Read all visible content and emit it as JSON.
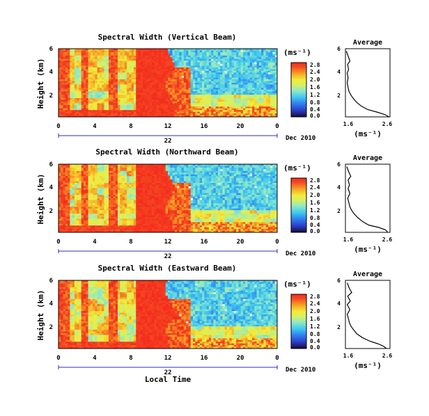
{
  "chart_data": [
    {
      "type": "heatmap",
      "title": "Spectral Width (Vertical Beam)",
      "ylabel": "Height (km)",
      "yticks": [
        "6",
        "4",
        "2"
      ],
      "xticks": [
        "0",
        "4",
        "8",
        "12",
        "16",
        "20",
        "0"
      ],
      "xlim": [
        0,
        24
      ],
      "ylim": [
        0.4,
        6
      ],
      "date_label": "22",
      "month_label": "Dec 2010",
      "colorbar": {
        "unit": "(ms⁻¹)",
        "ticks": [
          "2.8",
          "2.4",
          "2.0",
          "1.6",
          "1.2",
          "0.8",
          "0.4",
          "0.0"
        ],
        "range": [
          0,
          2.8
        ]
      },
      "average_profile": {
        "title": "Average",
        "xlabel": "(ms⁻¹)",
        "xticks": [
          "1.6",
          "2.6"
        ],
        "yticks": [
          "6",
          "4",
          "2"
        ],
        "xlim": [
          1.6,
          2.6
        ],
        "height_km": [
          0.4,
          0.6,
          0.8,
          1.0,
          1.3,
          1.6,
          1.9,
          2.2,
          2.5,
          2.8,
          3.2,
          3.6,
          4.0,
          4.3,
          4.7,
          5.0,
          5.4,
          5.8
        ],
        "width_ms": [
          2.58,
          2.48,
          2.3,
          2.1,
          1.95,
          1.85,
          1.78,
          1.72,
          1.68,
          1.66,
          1.64,
          1.66,
          1.64,
          1.67,
          1.65,
          1.7,
          1.66,
          1.62
        ]
      }
    },
    {
      "type": "heatmap",
      "title": "Spectral Width (Northward Beam)",
      "ylabel": "Height (km)",
      "yticks": [
        "6",
        "4",
        "2"
      ],
      "xticks": [
        "0",
        "4",
        "8",
        "12",
        "16",
        "20",
        "0"
      ],
      "xlim": [
        0,
        24
      ],
      "ylim": [
        0.4,
        6
      ],
      "date_label": "22",
      "month_label": "Dec 2010",
      "colorbar": {
        "unit": "(ms⁻¹)",
        "ticks": [
          "2.8",
          "2.4",
          "2.0",
          "1.6",
          "1.2",
          "0.8",
          "0.4",
          "0.0"
        ],
        "range": [
          0,
          2.8
        ]
      },
      "average_profile": {
        "title": "Average",
        "xlabel": "(ms⁻¹)",
        "xticks": [
          "1.6",
          "2.6"
        ],
        "yticks": [
          "6",
          "4",
          "2"
        ],
        "xlim": [
          1.6,
          2.6
        ],
        "height_km": [
          0.4,
          0.6,
          0.8,
          1.0,
          1.3,
          1.6,
          1.9,
          2.2,
          2.5,
          2.8,
          3.2,
          3.6,
          4.0,
          4.3,
          4.7,
          5.0,
          5.4,
          5.8
        ],
        "width_ms": [
          2.55,
          2.5,
          2.35,
          2.12,
          1.98,
          1.88,
          1.8,
          1.74,
          1.7,
          1.68,
          1.65,
          1.7,
          1.66,
          1.69,
          1.66,
          1.72,
          1.67,
          1.63
        ]
      }
    },
    {
      "type": "heatmap",
      "title": "Spectral Width (Eastward Beam)",
      "ylabel": "Height (km)",
      "yticks": [
        "6",
        "4",
        "2"
      ],
      "xticks": [
        "0",
        "4",
        "8",
        "12",
        "16",
        "20",
        "0"
      ],
      "xlim": [
        0,
        24
      ],
      "ylim": [
        0.4,
        6
      ],
      "date_label": "22",
      "month_label": "Dec 2010",
      "xlabel": "Local Time",
      "colorbar": {
        "unit": "(ms⁻¹)",
        "ticks": [
          "2.8",
          "2.4",
          "2.0",
          "1.6",
          "1.2",
          "0.8",
          "0.4",
          "0.0"
        ],
        "range": [
          0,
          2.8
        ]
      },
      "average_profile": {
        "title": "Average",
        "xlabel": "(ms⁻¹)",
        "xticks": [
          "1.6",
          "2.6"
        ],
        "yticks": [
          "6",
          "4",
          "2"
        ],
        "xlim": [
          1.6,
          2.6
        ],
        "height_km": [
          0.4,
          0.6,
          0.8,
          1.0,
          1.3,
          1.6,
          1.9,
          2.2,
          2.5,
          2.8,
          3.2,
          3.6,
          4.0,
          4.3,
          4.7,
          5.0,
          5.4,
          5.8
        ],
        "width_ms": [
          2.52,
          2.45,
          2.32,
          2.15,
          1.98,
          1.86,
          1.79,
          1.73,
          1.69,
          1.67,
          1.64,
          1.7,
          1.64,
          1.71,
          1.65,
          1.74,
          1.68,
          1.64
        ]
      }
    }
  ]
}
